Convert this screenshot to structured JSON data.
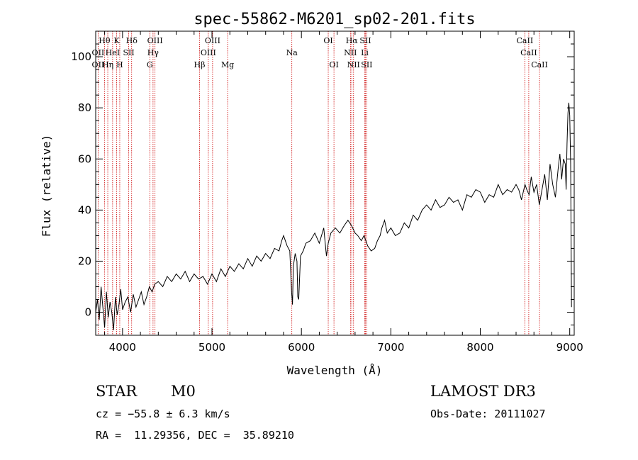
{
  "chart_data": {
    "type": "line",
    "title": "spec-55862-M6201_sp02-201.fits",
    "xlabel": "Wavelength (Å)",
    "ylabel": "Flux (relative)",
    "xlim": [
      3700,
      9050
    ],
    "ylim": [
      -9,
      110
    ],
    "x_ticks": [
      4000,
      5000,
      6000,
      7000,
      8000,
      9000
    ],
    "y_ticks": [
      0,
      20,
      40,
      60,
      80,
      100
    ],
    "grid": false,
    "series": [
      {
        "name": "flux",
        "x": [
          3700,
          3720,
          3740,
          3760,
          3780,
          3800,
          3820,
          3840,
          3860,
          3880,
          3900,
          3920,
          3940,
          3960,
          3980,
          4000,
          4030,
          4060,
          4090,
          4120,
          4150,
          4180,
          4210,
          4240,
          4270,
          4300,
          4330,
          4360,
          4400,
          4450,
          4500,
          4550,
          4600,
          4650,
          4700,
          4750,
          4800,
          4850,
          4900,
          4950,
          5000,
          5050,
          5100,
          5150,
          5200,
          5250,
          5300,
          5350,
          5400,
          5450,
          5500,
          5550,
          5600,
          5650,
          5700,
          5750,
          5780,
          5800,
          5840,
          5870,
          5890,
          5900,
          5910,
          5930,
          5950,
          5960,
          5970,
          5990,
          6020,
          6050,
          6100,
          6150,
          6200,
          6250,
          6280,
          6300,
          6330,
          6380,
          6430,
          6480,
          6520,
          6560,
          6600,
          6630,
          6670,
          6700,
          6740,
          6780,
          6820,
          6850,
          6880,
          6900,
          6930,
          6960,
          7000,
          7050,
          7100,
          7150,
          7200,
          7250,
          7300,
          7350,
          7400,
          7450,
          7500,
          7550,
          7600,
          7650,
          7700,
          7750,
          7800,
          7850,
          7900,
          7950,
          8000,
          8050,
          8100,
          8150,
          8200,
          8250,
          8300,
          8350,
          8400,
          8430,
          8460,
          8500,
          8520,
          8545,
          8570,
          8600,
          8630,
          8660,
          8690,
          8720,
          8750,
          8780,
          8810,
          8840,
          8870,
          8890,
          8910,
          8930,
          8950,
          8960,
          8970,
          8980,
          8990,
          9000,
          9010,
          9020
        ],
        "values": [
          0,
          5,
          -3,
          10,
          2,
          -6,
          8,
          -2,
          4,
          0,
          -7,
          6,
          -1,
          3,
          9,
          1,
          4,
          6,
          0,
          7,
          2,
          5,
          8,
          3,
          6,
          10,
          8,
          11,
          12,
          10,
          14,
          12,
          15,
          13,
          16,
          12,
          15,
          13,
          14,
          11,
          15,
          12,
          17,
          14,
          18,
          16,
          19,
          17,
          21,
          18,
          22,
          20,
          23,
          21,
          25,
          24,
          28,
          30,
          26,
          24,
          8,
          3,
          18,
          23,
          20,
          6,
          5,
          22,
          24,
          27,
          28,
          31,
          27,
          33,
          22,
          27,
          31,
          33,
          31,
          34,
          36,
          34,
          31,
          30,
          28,
          30,
          26,
          24,
          25,
          28,
          30,
          33,
          36,
          31,
          33,
          30,
          31,
          35,
          33,
          38,
          36,
          40,
          42,
          40,
          44,
          41,
          42,
          45,
          43,
          44,
          40,
          46,
          45,
          48,
          47,
          43,
          46,
          45,
          50,
          46,
          48,
          47,
          50,
          48,
          44,
          50,
          48,
          46,
          53,
          47,
          50,
          42,
          48,
          54,
          44,
          58,
          50,
          45,
          56,
          62,
          52,
          60,
          58,
          48,
          66,
          78,
          82,
          77,
          58,
          2
        ]
      }
    ],
    "spectral_lines": [
      {
        "label": "Hθ",
        "x": 3798,
        "row": 1
      },
      {
        "label": "OII",
        "x": 3727,
        "row": 2
      },
      {
        "label": "OII",
        "x": 3727,
        "row": 3
      },
      {
        "label": "Hη",
        "x": 3835,
        "row": 3
      },
      {
        "label": "HeI",
        "x": 3889,
        "row": 2
      },
      {
        "label": "K",
        "x": 3934,
        "row": 1
      },
      {
        "label": "H",
        "x": 3969,
        "row": 3
      },
      {
        "label": "SII",
        "x": 4069,
        "row": 2
      },
      {
        "label": "Hδ",
        "x": 4102,
        "row": 1
      },
      {
        "label": "OIII",
        "x": 4363,
        "row": 1
      },
      {
        "label": "Hγ",
        "x": 4341,
        "row": 2
      },
      {
        "label": "G",
        "x": 4305,
        "row": 3
      },
      {
        "label": "Hβ",
        "x": 4861,
        "row": 3
      },
      {
        "label": "OIII",
        "x": 5007,
        "row": 1
      },
      {
        "label": "OIII",
        "x": 4959,
        "row": 2
      },
      {
        "label": "Mg",
        "x": 5175,
        "row": 3
      },
      {
        "label": "Na",
        "x": 5893,
        "row": 2
      },
      {
        "label": "OI",
        "x": 6300,
        "row": 1
      },
      {
        "label": "OI",
        "x": 6364,
        "row": 3
      },
      {
        "label": "Hα",
        "x": 6563,
        "row": 1
      },
      {
        "label": "NII",
        "x": 6548,
        "row": 2
      },
      {
        "label": "NII",
        "x": 6583,
        "row": 3
      },
      {
        "label": "SII",
        "x": 6716,
        "row": 1
      },
      {
        "label": "Li",
        "x": 6708,
        "row": 2
      },
      {
        "label": "SII",
        "x": 6731,
        "row": 3
      },
      {
        "label": "CaII",
        "x": 8498,
        "row": 1
      },
      {
        "label": "CaII",
        "x": 8542,
        "row": 2
      },
      {
        "label": "CaII",
        "x": 8662,
        "row": 3
      }
    ]
  },
  "info": {
    "class": "STAR",
    "subclass": "M0",
    "survey": "LAMOST DR3",
    "cz": "cz = −55.8 ± 6.3 km/s",
    "obs_date": "Obs-Date: 20111027",
    "radec": "RA =  11.29356, DEC =  35.89210"
  },
  "colors": {
    "spectrum": "#000000",
    "line_markers": "#cc0000",
    "axes": "#000000",
    "background": "#ffffff"
  }
}
